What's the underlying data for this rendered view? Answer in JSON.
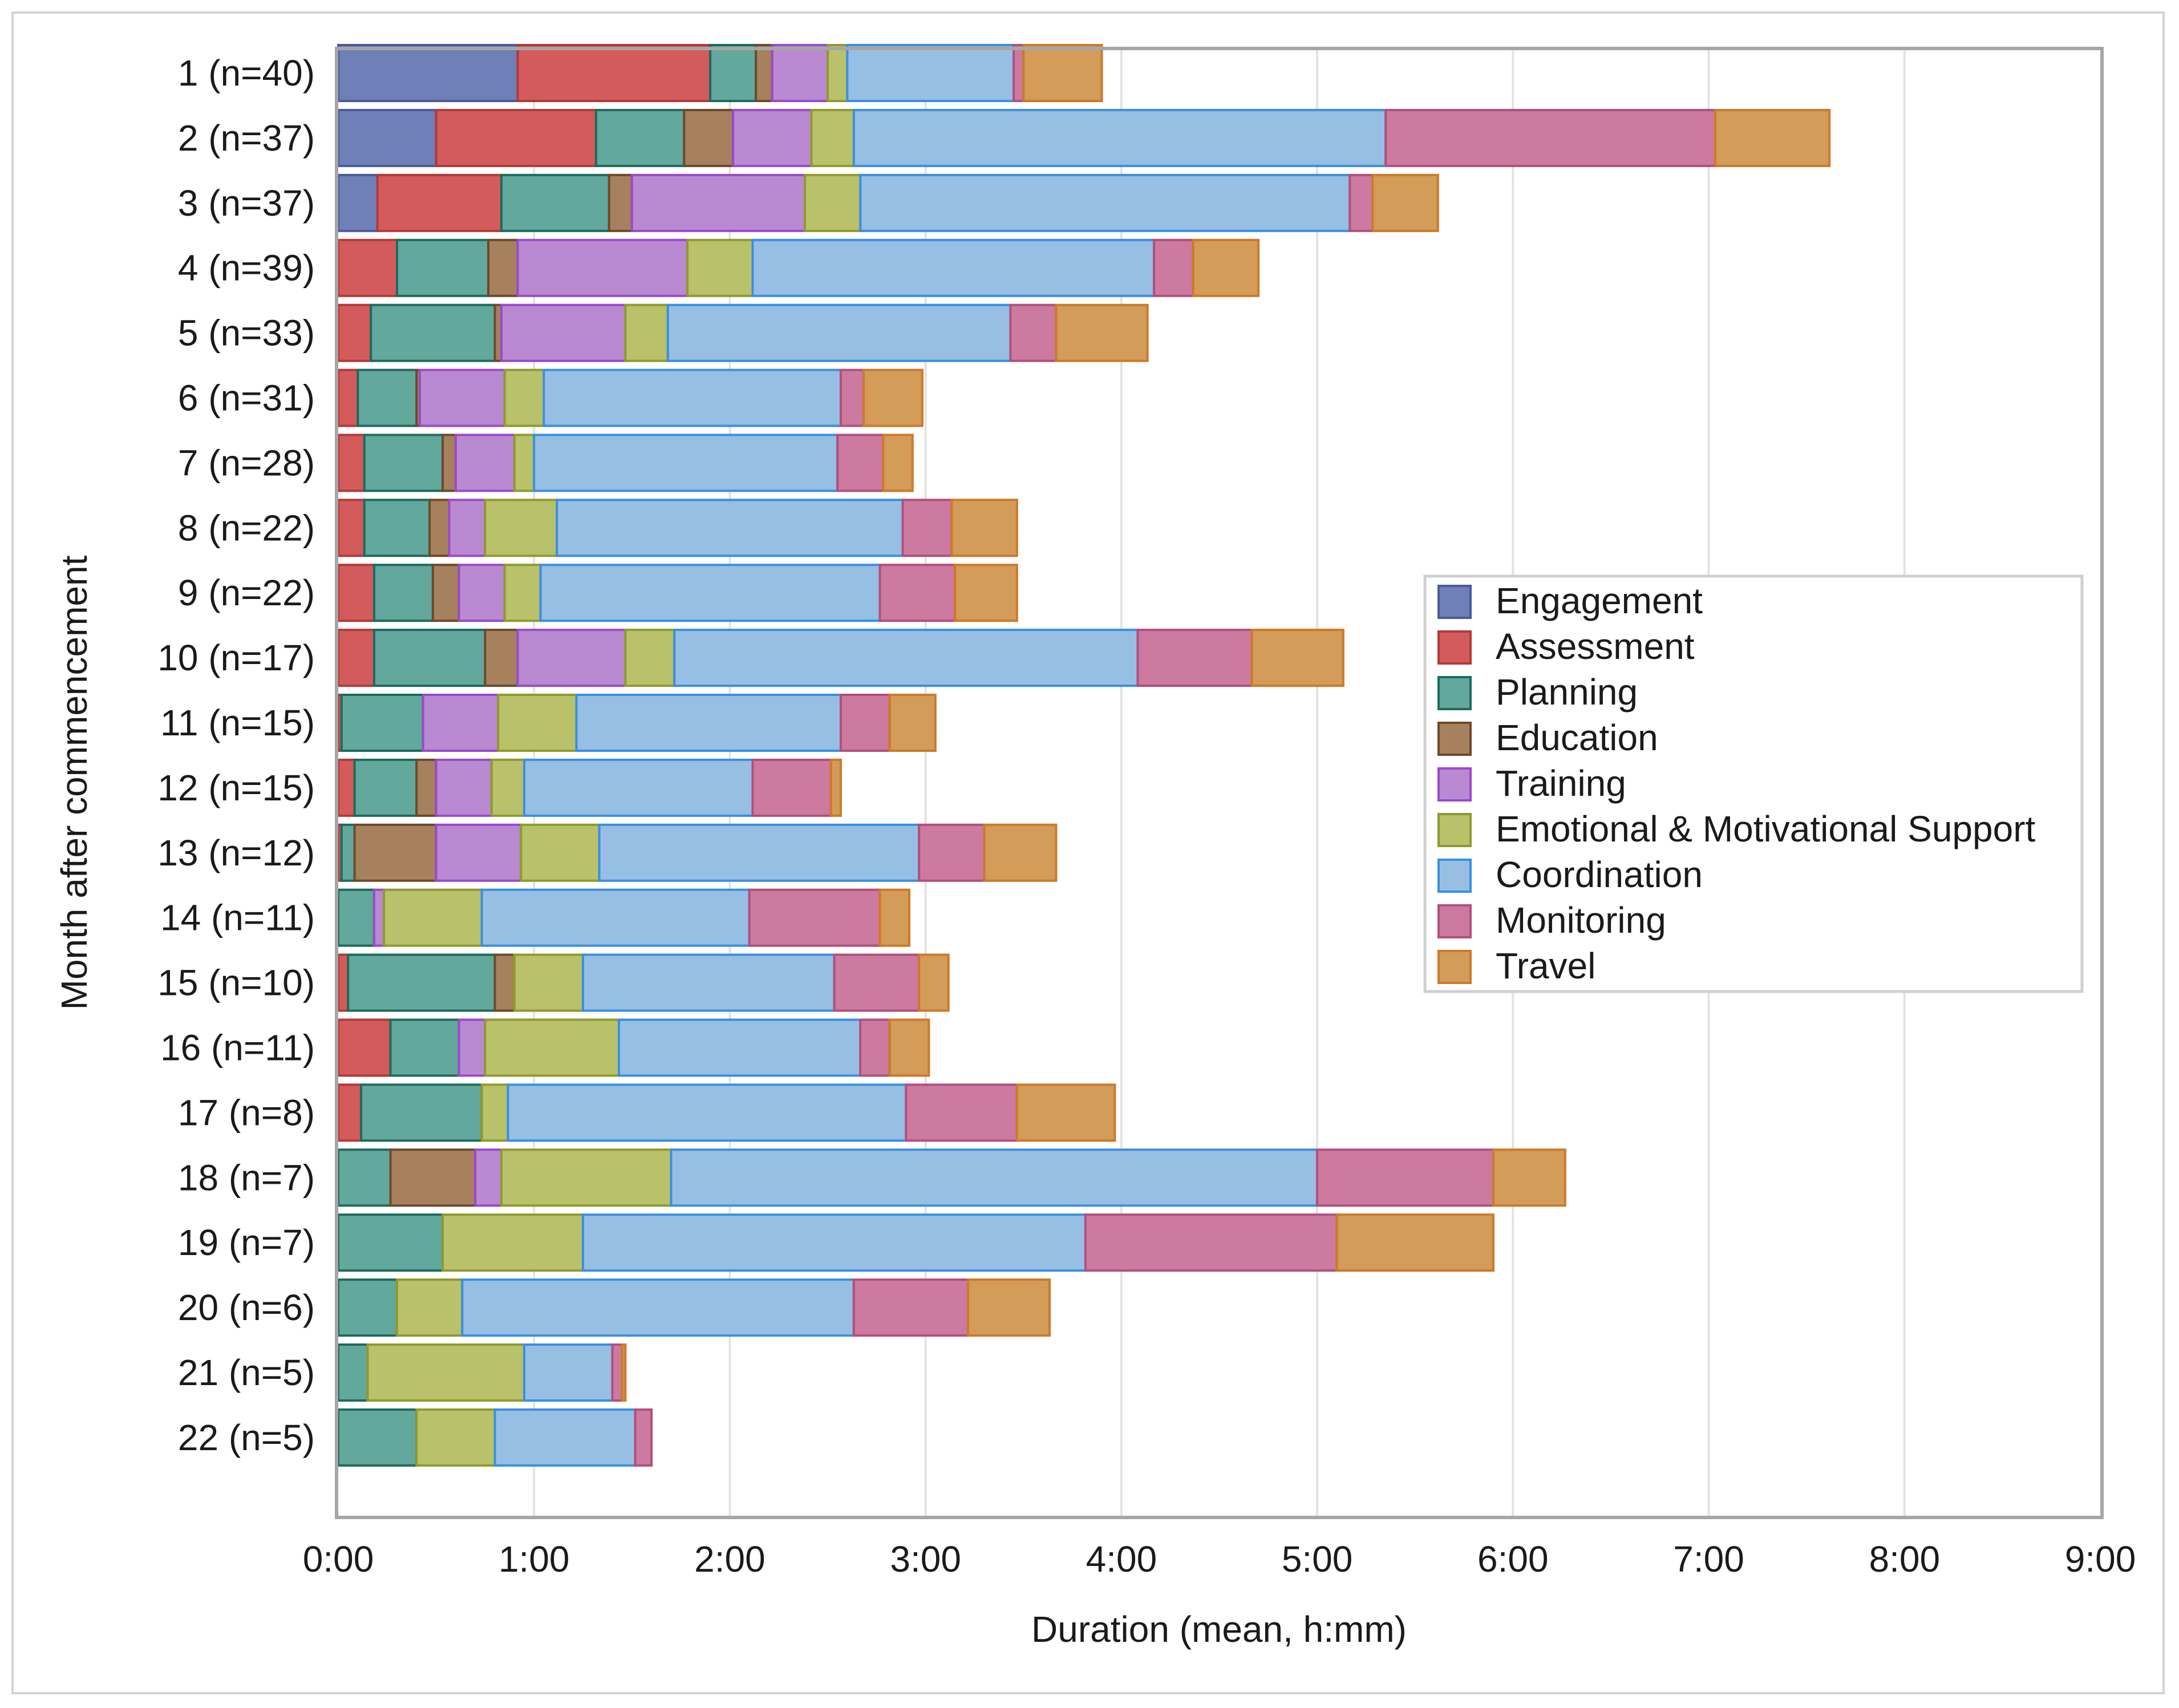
{
  "chart_data": {
    "type": "bar",
    "orientation": "horizontal",
    "stacked": true,
    "xlabel": "Duration (mean, h:mm)",
    "ylabel": "Month after commencement",
    "xlim_minutes": [
      0,
      540
    ],
    "x_tick_minutes": [
      0,
      60,
      120,
      180,
      240,
      300,
      360,
      420,
      480,
      540
    ],
    "x_tick_labels": [
      "0:00",
      "1:00",
      "2:00",
      "3:00",
      "4:00",
      "5:00",
      "6:00",
      "7:00",
      "8:00",
      "9:00"
    ],
    "grid": "vertical",
    "legend_position": "right",
    "categories": [
      "1 (n=40)",
      "2 (n=37)",
      "3 (n=37)",
      "4 (n=39)",
      "5 (n=33)",
      "6 (n=31)",
      "7 (n=28)",
      "8 (n=22)",
      "9 (n=22)",
      "10 (n=17)",
      "11 (n=15)",
      "12 (n=15)",
      "13 (n=12)",
      "14 (n=11)",
      "15 (n=10)",
      "16 (n=11)",
      "17 (n=8)",
      "18 (n=7)",
      "19 (n=7)",
      "20 (n=6)",
      "21 (n=5)",
      "22 (n=5)"
    ],
    "series": [
      {
        "name": "Engagement",
        "color": "#6f7fb7",
        "stroke": "#4c5a99",
        "values": [
          55,
          30,
          12,
          0,
          0,
          0,
          0,
          0,
          0,
          0,
          0,
          0,
          0,
          0,
          0,
          0,
          0,
          0,
          0,
          0,
          0,
          0
        ]
      },
      {
        "name": "Assessment",
        "color": "#d45b5b",
        "stroke": "#b03a3a",
        "values": [
          59,
          49,
          38,
          18,
          10,
          6,
          8,
          8,
          11,
          11,
          1,
          5,
          1,
          0,
          3,
          16,
          7,
          0,
          0,
          0,
          0,
          0
        ]
      },
      {
        "name": "Planning",
        "color": "#62a89c",
        "stroke": "#1d6b5c",
        "values": [
          14,
          27,
          33,
          28,
          38,
          18,
          24,
          20,
          18,
          34,
          25,
          19,
          4,
          11,
          45,
          21,
          37,
          16,
          32,
          18,
          9,
          24
        ]
      },
      {
        "name": "Education",
        "color": "#a7815e",
        "stroke": "#6b4a2c",
        "values": [
          5,
          15,
          7,
          9,
          2,
          1,
          4,
          6,
          8,
          10,
          0,
          6,
          25,
          0,
          6,
          0,
          0,
          26,
          0,
          0,
          0,
          0
        ]
      },
      {
        "name": "Training",
        "color": "#b98ad1",
        "stroke": "#9a49cc",
        "values": [
          17,
          24,
          53,
          52,
          38,
          26,
          18,
          11,
          14,
          33,
          23,
          17,
          26,
          3,
          0,
          8,
          0,
          8,
          0,
          0,
          0,
          0
        ]
      },
      {
        "name": "Emotional & Motivational Support",
        "color": "#b9c26a",
        "stroke": "#8f9a2e",
        "values": [
          6,
          13,
          17,
          20,
          13,
          12,
          6,
          22,
          11,
          15,
          24,
          10,
          24,
          30,
          21,
          41,
          8,
          52,
          43,
          20,
          48,
          24
        ]
      },
      {
        "name": "Coordination",
        "color": "#97bfe3",
        "stroke": "#3a8fe0",
        "values": [
          51,
          163,
          150,
          123,
          105,
          91,
          93,
          106,
          104,
          142,
          81,
          70,
          98,
          82,
          77,
          74,
          122,
          198,
          154,
          120,
          27,
          43
        ]
      },
      {
        "name": "Monitoring",
        "color": "#cd7aa0",
        "stroke": "#b0507c",
        "values": [
          3,
          101,
          7,
          12,
          14,
          7,
          14,
          15,
          23,
          35,
          15,
          24,
          20,
          40,
          26,
          9,
          34,
          54,
          77,
          35,
          3,
          5
        ]
      },
      {
        "name": "Travel",
        "color": "#d39c58",
        "stroke": "#cc7a2a",
        "values": [
          24,
          35,
          20,
          20,
          28,
          18,
          9,
          20,
          19,
          28,
          14,
          3,
          22,
          9,
          9,
          12,
          30,
          22,
          48,
          25,
          1,
          0
        ]
      }
    ]
  }
}
